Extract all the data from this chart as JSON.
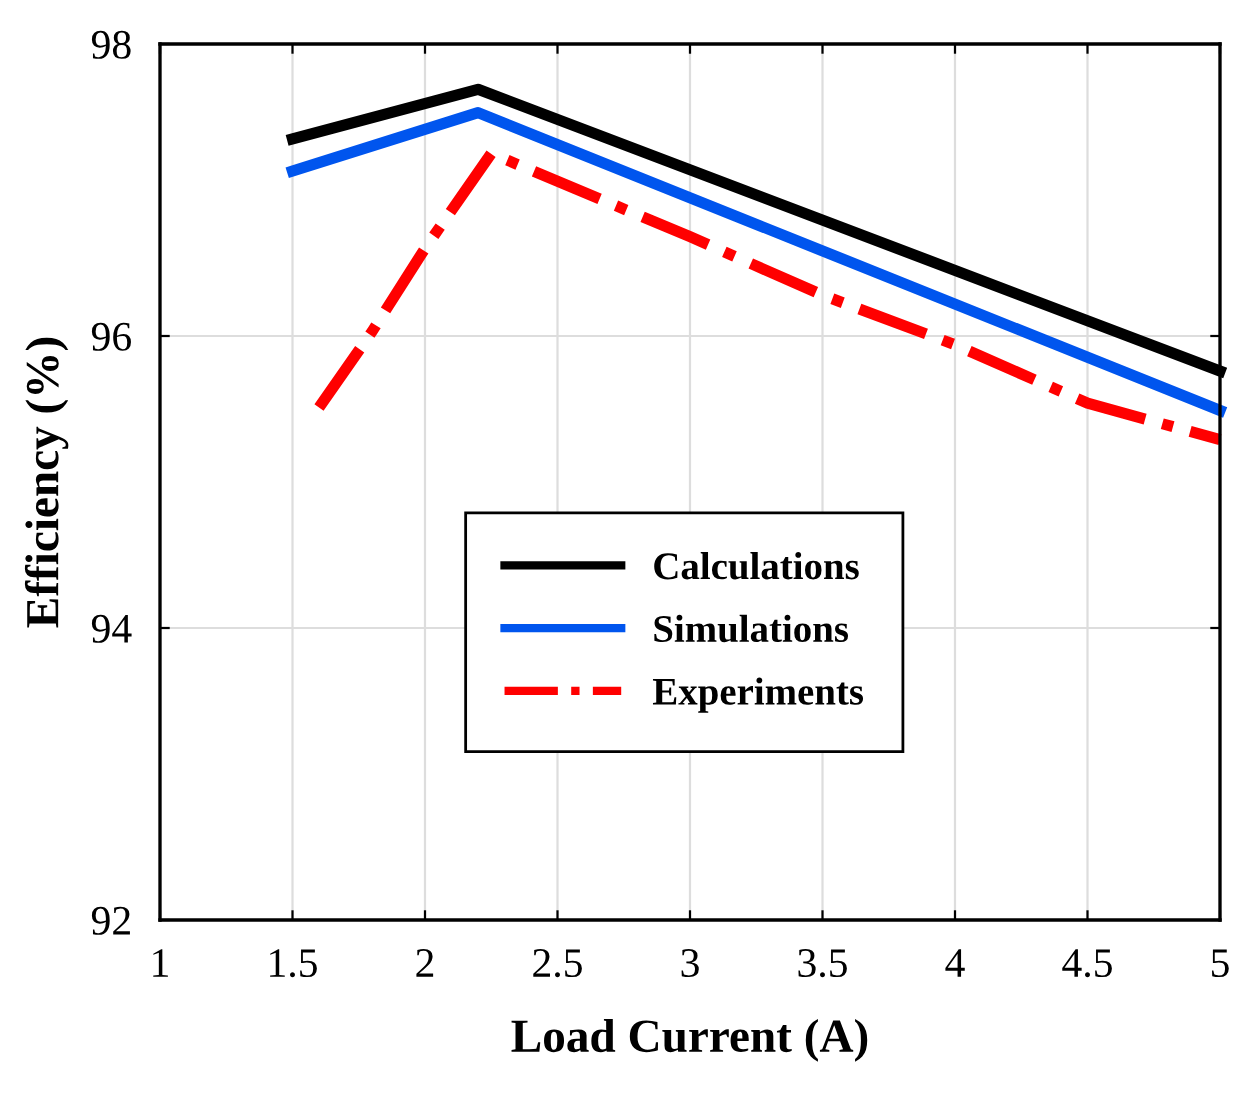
{
  "chart_data": {
    "type": "line",
    "xlabel": "Load Current (A)",
    "ylabel": "Efficiency (%)",
    "xlim": [
      1,
      5
    ],
    "ylim": [
      92,
      98
    ],
    "xticks": [
      1,
      1.5,
      2,
      2.5,
      3,
      3.5,
      4,
      4.5,
      5
    ],
    "yticks": [
      92,
      94,
      96,
      98
    ],
    "grid": true,
    "legend": "bottom left",
    "series": [
      {
        "name": "Calculations",
        "color": "#000000",
        "line_style": "solid",
        "x": [
          1.5,
          2.2,
          5
        ],
        "values": [
          97.35,
          97.69,
          95.76
        ]
      },
      {
        "name": "Simulations",
        "color": "#0055ee",
        "line_style": "solid",
        "x": [
          1.5,
          2.2,
          5
        ],
        "values": [
          97.13,
          97.53,
          95.49
        ]
      },
      {
        "name": "Experiments",
        "color": "#ff0000",
        "line_style": "dashdot",
        "x": [
          1.6,
          1.8,
          2.0,
          2.25,
          3,
          3.5,
          4,
          4.5,
          5
        ],
        "values": [
          95.51,
          96.03,
          96.6,
          97.25,
          96.68,
          96.28,
          95.94,
          95.54,
          95.29
        ]
      }
    ]
  }
}
